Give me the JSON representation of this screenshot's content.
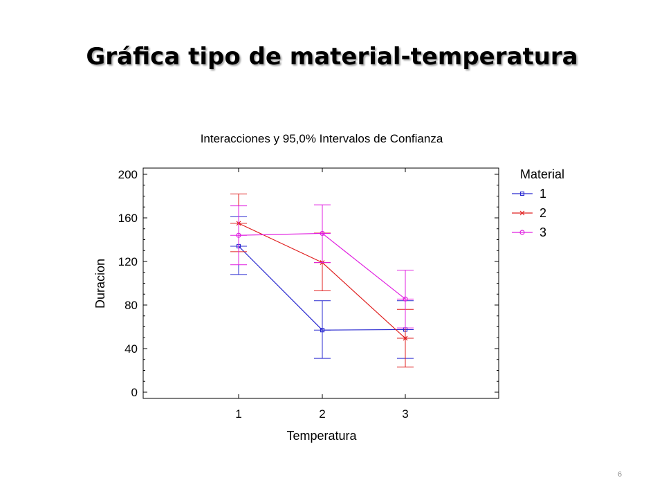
{
  "slide": {
    "title": "Gráfica tipo de material-temperatura",
    "page_number": "6"
  },
  "chart_data": {
    "type": "line",
    "title": "Interacciones y 95,0% Intervalos de Confianza",
    "xlabel": "Temperatura",
    "ylabel": "Duracion",
    "categories": [
      "1",
      "2",
      "3"
    ],
    "ylim": [
      0,
      200
    ],
    "yticks": [
      0,
      40,
      80,
      120,
      160,
      200
    ],
    "grid": false,
    "legend_title": "Material",
    "legend_position": "right",
    "series": [
      {
        "name": "1",
        "color": "#2b2bd0",
        "marker": "square",
        "values": [
          134,
          57,
          57.5
        ],
        "lower": [
          108,
          31,
          31
        ],
        "upper": [
          161,
          84,
          84
        ]
      },
      {
        "name": "2",
        "color": "#e02020",
        "marker": "x",
        "values": [
          155,
          119,
          49.5
        ],
        "lower": [
          129,
          93,
          23
        ],
        "upper": [
          182,
          146,
          76
        ]
      },
      {
        "name": "3",
        "color": "#e020e0",
        "marker": "circle",
        "values": [
          144,
          145.75,
          85.5
        ],
        "lower": [
          117,
          119,
          59
        ],
        "upper": [
          171,
          172,
          112
        ]
      }
    ]
  }
}
